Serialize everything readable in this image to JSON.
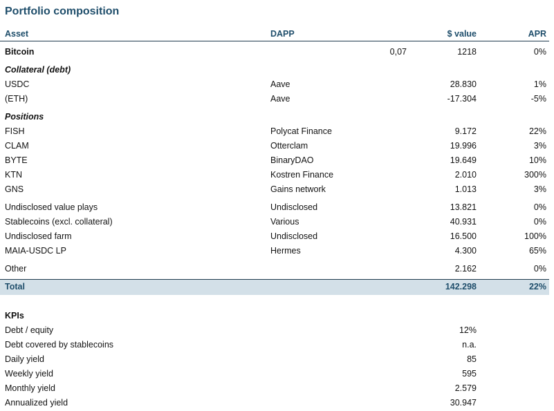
{
  "title": "Portfolio composition",
  "headers": {
    "asset": "Asset",
    "dapp": "DAPP",
    "value": "$ value",
    "apr": "APR"
  },
  "bitcoin": {
    "asset": "Bitcoin",
    "amount": "0,07",
    "value": "1218",
    "apr": "0%"
  },
  "collateral_section": "Collateral (debt)",
  "collateral": [
    {
      "asset": "USDC",
      "dapp": "Aave",
      "value": "28.830",
      "apr": "1%"
    },
    {
      "asset": "(ETH)",
      "dapp": "Aave",
      "value": "-17.304",
      "apr": "-5%"
    }
  ],
  "positions_section": "Positions",
  "positions": [
    {
      "asset": "FISH",
      "dapp": "Polycat Finance",
      "value": "9.172",
      "apr": "22%"
    },
    {
      "asset": "CLAM",
      "dapp": "Otterclam",
      "value": "19.996",
      "apr": "3%"
    },
    {
      "asset": "BYTE",
      "dapp": "BinaryDAO",
      "value": "19.649",
      "apr": "10%"
    },
    {
      "asset": "KTN",
      "dapp": "Kostren Finance",
      "value": "2.010",
      "apr": "300%"
    },
    {
      "asset": "GNS",
      "dapp": "Gains network",
      "value": "1.013",
      "apr": "3%"
    }
  ],
  "other_positions": [
    {
      "asset": "Undisclosed value plays",
      "dapp": "Undisclosed",
      "value": "13.821",
      "apr": "0%"
    },
    {
      "asset": "Stablecoins (excl. collateral)",
      "dapp": "Various",
      "value": "40.931",
      "apr": "0%"
    },
    {
      "asset": "Undisclosed farm",
      "dapp": "Undisclosed",
      "value": "16.500",
      "apr": "100%"
    },
    {
      "asset": "MAIA-USDC LP",
      "dapp": "Hermes",
      "value": "4.300",
      "apr": "65%"
    }
  ],
  "other": {
    "asset": "Other",
    "value": "2.162",
    "apr": "0%"
  },
  "total": {
    "label": "Total",
    "value": "142.298",
    "apr": "22%"
  },
  "kpis_title": "KPIs",
  "kpis": [
    {
      "label": "Debt / equity",
      "value": "12%"
    },
    {
      "label": "Debt covered by stablecoins",
      "value": "n.a."
    },
    {
      "label": "Daily yield",
      "value": "85"
    },
    {
      "label": "Weekly yield",
      "value": "595"
    },
    {
      "label": "Monthly yield",
      "value": "2.579"
    },
    {
      "label": "Annualized yield",
      "value": "30.947"
    }
  ]
}
